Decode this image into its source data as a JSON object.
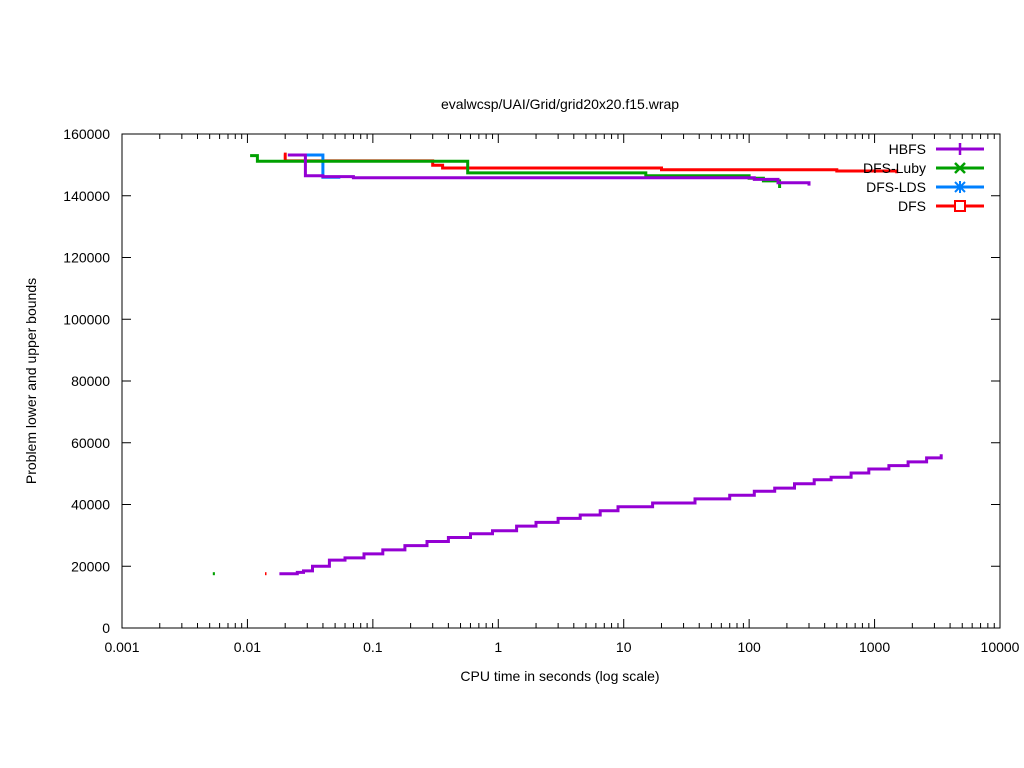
{
  "chart_data": {
    "type": "line",
    "title": "evalwcsp/UAI/Grid/grid20x20.f15.wrap",
    "xlabel": "CPU time in seconds (log scale)",
    "ylabel": "Problem lower and upper bounds",
    "x_scale": "log",
    "xlim": [
      0.001,
      10000
    ],
    "ylim": [
      0,
      160000
    ],
    "x_ticks": [
      {
        "value": 0.001,
        "label": "0.001"
      },
      {
        "value": 0.01,
        "label": "0.01"
      },
      {
        "value": 0.1,
        "label": "0.1"
      },
      {
        "value": 1,
        "label": "1"
      },
      {
        "value": 10,
        "label": "10"
      },
      {
        "value": 100,
        "label": "100"
      },
      {
        "value": 1000,
        "label": "1000"
      },
      {
        "value": 10000,
        "label": "10000"
      }
    ],
    "y_ticks": [
      {
        "value": 0,
        "label": "0"
      },
      {
        "value": 20000,
        "label": "20000"
      },
      {
        "value": 40000,
        "label": "40000"
      },
      {
        "value": 60000,
        "label": "60000"
      },
      {
        "value": 80000,
        "label": "80000"
      },
      {
        "value": 100000,
        "label": "100000"
      },
      {
        "value": 120000,
        "label": "120000"
      },
      {
        "value": 140000,
        "label": "140000"
      },
      {
        "value": 160000,
        "label": "160000"
      }
    ],
    "grid": false,
    "legend_position": "top-right",
    "series": [
      {
        "name": "HBFS",
        "color": "#9400d3",
        "marker": "plus",
        "upper": [
          [
            0.021,
            153200
          ],
          [
            0.029,
            153200
          ],
          [
            0.029,
            146500
          ],
          [
            0.04,
            146500
          ],
          [
            0.04,
            146200
          ],
          [
            0.07,
            146200
          ],
          [
            0.07,
            145800
          ],
          [
            110,
            145800
          ],
          [
            110,
            145300
          ],
          [
            170,
            145300
          ],
          [
            170,
            144200
          ],
          [
            300,
            144200
          ],
          [
            300,
            143300
          ]
        ],
        "lower": [
          [
            0.018,
            17600
          ],
          [
            0.025,
            17600
          ],
          [
            0.025,
            18000
          ],
          [
            0.028,
            18000
          ],
          [
            0.028,
            18500
          ],
          [
            0.033,
            18500
          ],
          [
            0.033,
            20000
          ],
          [
            0.045,
            20000
          ],
          [
            0.045,
            22000
          ],
          [
            0.06,
            22000
          ],
          [
            0.06,
            22700
          ],
          [
            0.085,
            22700
          ],
          [
            0.085,
            24000
          ],
          [
            0.12,
            24000
          ],
          [
            0.12,
            25300
          ],
          [
            0.18,
            25300
          ],
          [
            0.18,
            26700
          ],
          [
            0.27,
            26700
          ],
          [
            0.27,
            28000
          ],
          [
            0.4,
            28000
          ],
          [
            0.4,
            29300
          ],
          [
            0.6,
            29300
          ],
          [
            0.6,
            30500
          ],
          [
            0.9,
            30500
          ],
          [
            0.9,
            31500
          ],
          [
            1.4,
            31500
          ],
          [
            1.4,
            33000
          ],
          [
            2,
            33000
          ],
          [
            2,
            34200
          ],
          [
            3,
            34200
          ],
          [
            3,
            35500
          ],
          [
            4.5,
            35500
          ],
          [
            4.5,
            36600
          ],
          [
            6.5,
            36600
          ],
          [
            6.5,
            38000
          ],
          [
            9,
            38000
          ],
          [
            9,
            39300
          ],
          [
            17,
            39300
          ],
          [
            17,
            40500
          ],
          [
            37,
            40500
          ],
          [
            37,
            41800
          ],
          [
            70,
            41800
          ],
          [
            70,
            43000
          ],
          [
            110,
            43000
          ],
          [
            110,
            44300
          ],
          [
            160,
            44300
          ],
          [
            160,
            45300
          ],
          [
            230,
            45300
          ],
          [
            230,
            46700
          ],
          [
            330,
            46700
          ],
          [
            330,
            48000
          ],
          [
            450,
            48000
          ],
          [
            450,
            48800
          ],
          [
            650,
            48800
          ],
          [
            650,
            50200
          ],
          [
            900,
            50200
          ],
          [
            900,
            51500
          ],
          [
            1300,
            51500
          ],
          [
            1300,
            52600
          ],
          [
            1850,
            52600
          ],
          [
            1850,
            53800
          ],
          [
            2600,
            53800
          ],
          [
            2600,
            55100
          ],
          [
            3400,
            55100
          ],
          [
            3400,
            56300
          ]
        ]
      },
      {
        "name": "DFS-Luby",
        "color": "#00a000",
        "marker": "cross",
        "upper": [
          [
            0.0105,
            153000
          ],
          [
            0.012,
            153000
          ],
          [
            0.012,
            151200
          ],
          [
            0.57,
            151200
          ],
          [
            0.57,
            147400
          ],
          [
            15,
            147400
          ],
          [
            15,
            146500
          ],
          [
            100,
            146500
          ],
          [
            100,
            145700
          ],
          [
            130,
            145700
          ],
          [
            130,
            144800
          ],
          [
            175,
            144800
          ],
          [
            175,
            142500
          ]
        ],
        "lower": [
          [
            0.0053,
            17600
          ],
          [
            0.0055,
            17600
          ]
        ]
      },
      {
        "name": "DFS-LDS",
        "color": "#0080ff",
        "marker": "star",
        "upper": [
          [
            0.025,
            153200
          ],
          [
            0.04,
            153200
          ],
          [
            0.04,
            146000
          ],
          [
            0.055,
            146000
          ]
        ],
        "lower": []
      },
      {
        "name": "DFS",
        "color": "#ff0000",
        "marker": "square",
        "upper": [
          [
            0.0195,
            153500
          ],
          [
            0.02,
            153500
          ],
          [
            0.02,
            151300
          ],
          [
            0.3,
            151300
          ],
          [
            0.3,
            149900
          ],
          [
            0.36,
            149900
          ],
          [
            0.36,
            149000
          ],
          [
            20,
            149000
          ],
          [
            20,
            148400
          ],
          [
            500,
            148400
          ],
          [
            500,
            148000
          ],
          [
            1500,
            148000
          ],
          [
            1500,
            147300
          ]
        ],
        "lower": [
          [
            0.0138,
            17600
          ],
          [
            0.0142,
            17600
          ]
        ]
      }
    ]
  }
}
